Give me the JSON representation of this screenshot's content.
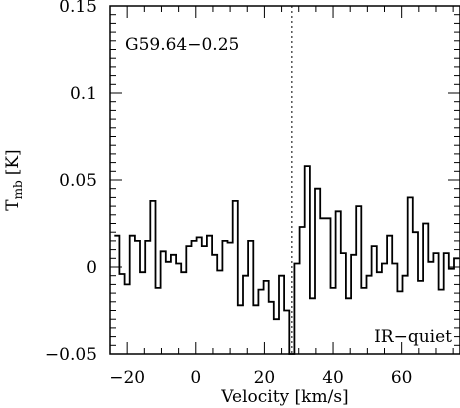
{
  "chart_data": {
    "type": "line",
    "step": true,
    "title": "",
    "xlabel": "Velocity [km/s]",
    "ylabel": "T",
    "ylabel_sub": "mb",
    "ylabel_unit": "[K]",
    "xlim": [
      -25,
      77
    ],
    "ylim": [
      -0.05,
      0.15
    ],
    "xticks": [
      -20,
      0,
      20,
      40,
      60
    ],
    "xtick_labels": [
      "−20",
      "0",
      "20",
      "40",
      "60"
    ],
    "yticks": [
      -0.05,
      0,
      0.05,
      0.1,
      0.15
    ],
    "ytick_labels": [
      "−0.05",
      "0",
      "0.05",
      "0.1",
      "0.15"
    ],
    "grid": false,
    "annotations": {
      "source": "G59.64−0.25",
      "label": "IR−quiet",
      "vline_x": 28
    },
    "series": [
      {
        "x": [
          -23,
          -21.5,
          -20,
          -18.5,
          -17,
          -15.5,
          -14,
          -12.5,
          -11,
          -9.5,
          -8,
          -6.5,
          -5,
          -3.5,
          -2,
          -0.5,
          1,
          2.5,
          4,
          5.5,
          7,
          8.5,
          10,
          11.5,
          13,
          14.5,
          16,
          17.5,
          19,
          20.5,
          22,
          23.5,
          25,
          26.5,
          28,
          29.5,
          31,
          32.5,
          34,
          35.5,
          37,
          38.5,
          40,
          41.5,
          43,
          44.5,
          46,
          47.5,
          49,
          50.5,
          52,
          53.5,
          55,
          56.5,
          58,
          59.5,
          61,
          62.5,
          64,
          65.5,
          67,
          68.5,
          70,
          71.5,
          73,
          74.5,
          76
        ],
        "values": [
          0.018,
          -0.004,
          -0.01,
          0.018,
          0.015,
          -0.003,
          0.015,
          0.038,
          -0.012,
          0.009,
          0.003,
          0.007,
          0.002,
          -0.003,
          0.012,
          0.015,
          0.017,
          0.012,
          0.018,
          0.007,
          -0.002,
          0.015,
          0.014,
          0.038,
          -0.022,
          -0.005,
          0.015,
          -0.022,
          -0.013,
          -0.008,
          -0.02,
          -0.03,
          -0.005,
          -0.025,
          -0.05,
          0.002,
          0.023,
          0.058,
          -0.018,
          0.045,
          0.028,
          0.028,
          -0.012,
          0.032,
          0.008,
          -0.018,
          0.007,
          0.035,
          -0.012,
          -0.005,
          0.012,
          -0.003,
          0.002,
          0.018,
          0.002,
          -0.014,
          -0.005,
          0.04,
          0.02,
          -0.008,
          0.025,
          0.003,
          0.008,
          -0.013,
          0.008,
          -0.001,
          0.005
        ]
      }
    ]
  }
}
